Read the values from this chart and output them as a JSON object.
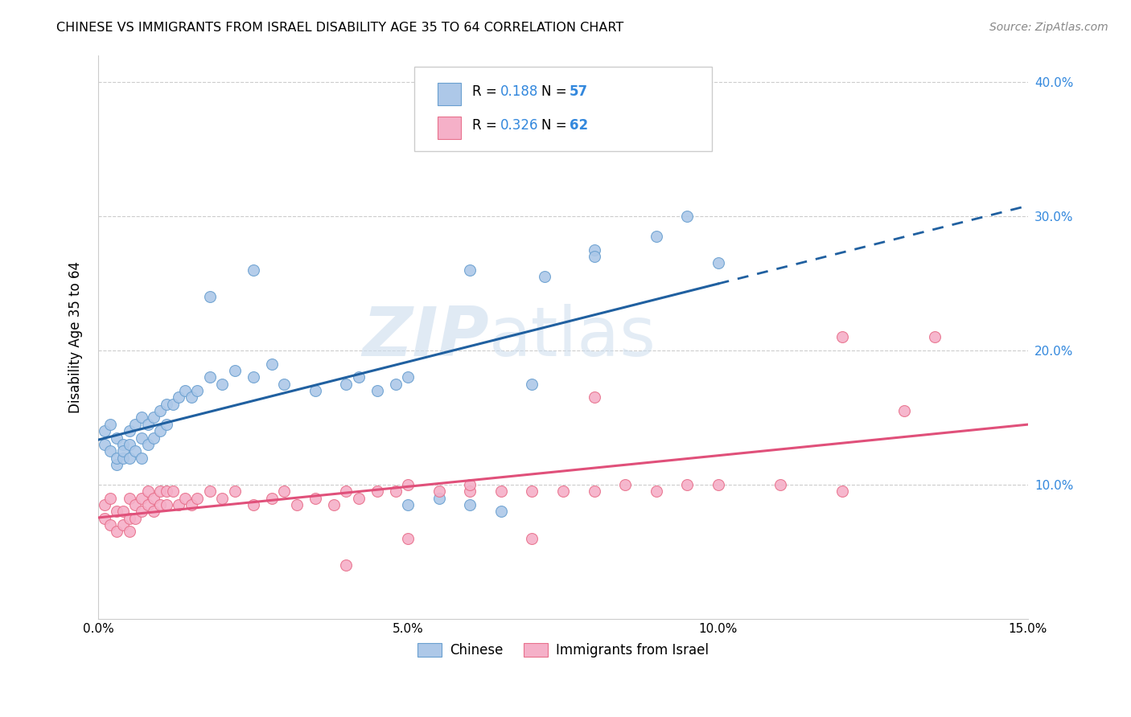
{
  "title": "CHINESE VS IMMIGRANTS FROM ISRAEL DISABILITY AGE 35 TO 64 CORRELATION CHART",
  "source": "Source: ZipAtlas.com",
  "ylabel": "Disability Age 35 to 64",
  "xlim": [
    0.0,
    0.15
  ],
  "ylim": [
    0.0,
    0.42
  ],
  "legend_labels": [
    "Chinese",
    "Immigrants from Israel"
  ],
  "r_chinese": 0.188,
  "n_chinese": 57,
  "r_israel": 0.326,
  "n_israel": 62,
  "color_chinese_fill": "#adc8e8",
  "color_israel_fill": "#f5b0c8",
  "color_chinese_edge": "#6aa0d0",
  "color_israel_edge": "#e8708c",
  "color_chinese_line": "#2060a0",
  "color_israel_line": "#e0507a",
  "color_r_n": "#3388dd",
  "watermark": "ZIPatlas",
  "chinese_x": [
    0.001,
    0.001,
    0.002,
    0.002,
    0.003,
    0.003,
    0.003,
    0.004,
    0.004,
    0.004,
    0.005,
    0.005,
    0.005,
    0.006,
    0.006,
    0.007,
    0.007,
    0.007,
    0.008,
    0.008,
    0.009,
    0.009,
    0.01,
    0.01,
    0.011,
    0.011,
    0.012,
    0.013,
    0.014,
    0.015,
    0.016,
    0.018,
    0.02,
    0.022,
    0.025,
    0.028,
    0.03,
    0.035,
    0.04,
    0.042,
    0.045,
    0.048,
    0.05,
    0.055,
    0.06,
    0.065,
    0.07,
    0.072,
    0.08,
    0.09,
    0.095,
    0.1,
    0.05,
    0.06,
    0.08,
    0.018,
    0.025
  ],
  "chinese_y": [
    0.14,
    0.13,
    0.145,
    0.125,
    0.135,
    0.115,
    0.12,
    0.13,
    0.12,
    0.125,
    0.14,
    0.13,
    0.12,
    0.145,
    0.125,
    0.15,
    0.135,
    0.12,
    0.145,
    0.13,
    0.15,
    0.135,
    0.155,
    0.14,
    0.16,
    0.145,
    0.16,
    0.165,
    0.17,
    0.165,
    0.17,
    0.18,
    0.175,
    0.185,
    0.18,
    0.19,
    0.175,
    0.17,
    0.175,
    0.18,
    0.17,
    0.175,
    0.085,
    0.09,
    0.085,
    0.08,
    0.175,
    0.255,
    0.275,
    0.285,
    0.3,
    0.265,
    0.18,
    0.26,
    0.27,
    0.24,
    0.26
  ],
  "israel_x": [
    0.001,
    0.001,
    0.002,
    0.002,
    0.003,
    0.003,
    0.004,
    0.004,
    0.005,
    0.005,
    0.005,
    0.006,
    0.006,
    0.007,
    0.007,
    0.008,
    0.008,
    0.009,
    0.009,
    0.01,
    0.01,
    0.011,
    0.011,
    0.012,
    0.013,
    0.014,
    0.015,
    0.016,
    0.018,
    0.02,
    0.022,
    0.025,
    0.028,
    0.03,
    0.032,
    0.035,
    0.038,
    0.04,
    0.042,
    0.045,
    0.048,
    0.05,
    0.055,
    0.06,
    0.065,
    0.07,
    0.075,
    0.08,
    0.085,
    0.09,
    0.095,
    0.1,
    0.11,
    0.12,
    0.13,
    0.135,
    0.06,
    0.04,
    0.05,
    0.07,
    0.08,
    0.12
  ],
  "israel_y": [
    0.085,
    0.075,
    0.09,
    0.07,
    0.08,
    0.065,
    0.08,
    0.07,
    0.09,
    0.075,
    0.065,
    0.085,
    0.075,
    0.09,
    0.08,
    0.085,
    0.095,
    0.09,
    0.08,
    0.095,
    0.085,
    0.095,
    0.085,
    0.095,
    0.085,
    0.09,
    0.085,
    0.09,
    0.095,
    0.09,
    0.095,
    0.085,
    0.09,
    0.095,
    0.085,
    0.09,
    0.085,
    0.04,
    0.09,
    0.095,
    0.095,
    0.1,
    0.095,
    0.095,
    0.095,
    0.06,
    0.095,
    0.095,
    0.1,
    0.095,
    0.1,
    0.1,
    0.1,
    0.095,
    0.155,
    0.21,
    0.1,
    0.095,
    0.06,
    0.095,
    0.165,
    0.21
  ],
  "ytick_vals": [
    0.1,
    0.2,
    0.3,
    0.4
  ],
  "ytick_labels": [
    "10.0%",
    "20.0%",
    "30.0%",
    "40.0%"
  ],
  "xtick_vals": [
    0.0,
    0.025,
    0.05,
    0.075,
    0.1,
    0.125,
    0.15
  ],
  "xtick_labels": [
    "0.0%",
    "",
    "5.0%",
    "",
    "10.0%",
    "",
    "15.0%"
  ]
}
